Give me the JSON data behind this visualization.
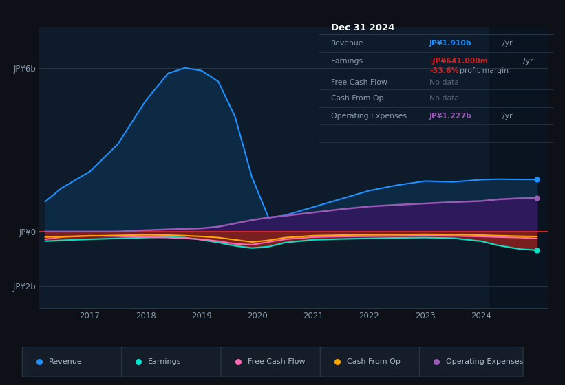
{
  "bg_color": "#0d1117",
  "chart_bg": "#0d1b2a",
  "grid_color": "#263645",
  "ytick_values": [
    6000000000.0,
    0,
    -2000000000.0
  ],
  "ytick_labels": [
    "JP¥6b",
    "JP¥0",
    "-JP¥2b"
  ],
  "ylim": [
    -2800000000.0,
    7500000000.0
  ],
  "xlim": [
    2016.1,
    2025.2
  ],
  "years_x": [
    2016.2,
    2016.5,
    2017.0,
    2017.5,
    2018.0,
    2018.4,
    2018.7,
    2019.0,
    2019.3,
    2019.6,
    2019.9,
    2020.2,
    2020.5,
    2021.0,
    2021.5,
    2022.0,
    2022.5,
    2023.0,
    2023.5,
    2024.0,
    2024.3,
    2024.7,
    2025.0
  ],
  "revenue": [
    1100000000.0,
    1600000000.0,
    2200000000.0,
    3200000000.0,
    4800000000.0,
    5800000000.0,
    6000000000.0,
    5900000000.0,
    5500000000.0,
    4200000000.0,
    2000000000.0,
    500000000.0,
    600000000.0,
    900000000.0,
    1200000000.0,
    1500000000.0,
    1700000000.0,
    1850000000.0,
    1820000000.0,
    1900000000.0,
    1920000000.0,
    1910000000.0,
    1910000000.0
  ],
  "earnings": [
    -350000000.0,
    -320000000.0,
    -280000000.0,
    -250000000.0,
    -220000000.0,
    -200000000.0,
    -220000000.0,
    -300000000.0,
    -400000000.0,
    -520000000.0,
    -600000000.0,
    -550000000.0,
    -400000000.0,
    -300000000.0,
    -270000000.0,
    -250000000.0,
    -230000000.0,
    -220000000.0,
    -240000000.0,
    -350000000.0,
    -500000000.0,
    -640000000.0,
    -680000000.0
  ],
  "free_cash_flow": [
    -280000000.0,
    -200000000.0,
    -150000000.0,
    -170000000.0,
    -200000000.0,
    -220000000.0,
    -250000000.0,
    -280000000.0,
    -350000000.0,
    -450000000.0,
    -480000000.0,
    -380000000.0,
    -280000000.0,
    -200000000.0,
    -180000000.0,
    -170000000.0,
    -160000000.0,
    -150000000.0,
    -160000000.0,
    -180000000.0,
    -200000000.0,
    -220000000.0,
    -250000000.0
  ],
  "cash_from_op": [
    -200000000.0,
    -180000000.0,
    -160000000.0,
    -140000000.0,
    -120000000.0,
    -130000000.0,
    -150000000.0,
    -180000000.0,
    -220000000.0,
    -300000000.0,
    -380000000.0,
    -320000000.0,
    -220000000.0,
    -150000000.0,
    -130000000.0,
    -120000000.0,
    -110000000.0,
    -100000000.0,
    -110000000.0,
    -130000000.0,
    -150000000.0,
    -170000000.0,
    -180000000.0
  ],
  "op_expenses": [
    0,
    0,
    0,
    0,
    50000000.0,
    80000000.0,
    100000000.0,
    120000000.0,
    180000000.0,
    300000000.0,
    420000000.0,
    520000000.0,
    580000000.0,
    700000000.0,
    820000000.0,
    920000000.0,
    980000000.0,
    1030000000.0,
    1080000000.0,
    1120000000.0,
    1180000000.0,
    1220000000.0,
    1230000000.0
  ],
  "revenue_line_color": "#1e90ff",
  "revenue_fill_color": "#0d2a45",
  "earnings_line_color": "#00e5cc",
  "earnings_fill_color": "#7a1f1f",
  "fcf_line_color": "#ff69b4",
  "cfop_line_color": "#ffa500",
  "opex_line_color": "#9b59b6",
  "opex_fill_color": "#2d1a5c",
  "zero_line_color": "#dd2222",
  "shade_color": "#091420",
  "shade_start": 2024.15,
  "shade_end": 2025.25,
  "xtick_years": [
    2017,
    2018,
    2019,
    2020,
    2021,
    2022,
    2023,
    2024
  ],
  "legend_items": [
    "Revenue",
    "Earnings",
    "Free Cash Flow",
    "Cash From Op",
    "Operating Expenses"
  ],
  "legend_colors": [
    "#1e90ff",
    "#00e5cc",
    "#ff69b4",
    "#ffa500",
    "#9b59b6"
  ],
  "info_box": {
    "date": "Dec 31 2024",
    "revenue_val": "JP¥1.910b",
    "revenue_color": "#1e90ff",
    "earnings_val": "-JP¥641.000m",
    "earnings_color": "#cc2222",
    "earnings_pct": "-33.6%",
    "earnings_pct_color": "#cc2222",
    "nodata_color": "#556677",
    "op_exp_val": "JP¥1.227b",
    "op_exp_color": "#9b59b6"
  }
}
